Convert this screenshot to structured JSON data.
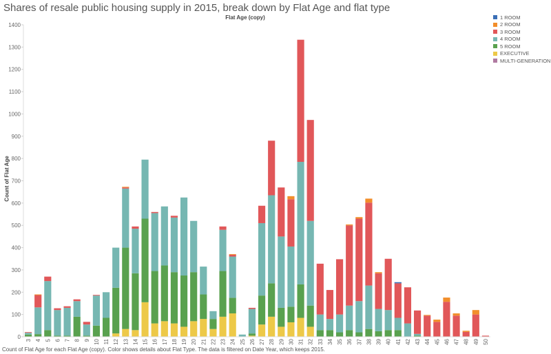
{
  "chart_data": {
    "type": "bar",
    "stacked": true,
    "title": "Shares of resale public housing supply in 2015, break down by Flat Age and flat type",
    "column_header": "Flat Age (copy)",
    "ylabel": "Count of Flat Age",
    "xlabel": "",
    "ylim": [
      0,
      1400
    ],
    "yticks": [
      0,
      100,
      200,
      300,
      400,
      500,
      600,
      700,
      800,
      900,
      1000,
      1100,
      1200,
      1300,
      1400
    ],
    "grid": false,
    "legend_position": "right",
    "categories": [
      "3",
      "4",
      "5",
      "6",
      "7",
      "8",
      "9",
      "10",
      "11",
      "12",
      "13",
      "14",
      "15",
      "16",
      "17",
      "18",
      "19",
      "20",
      "21",
      "22",
      "23",
      "24",
      "25",
      "26",
      "27",
      "28",
      "29",
      "30",
      "31",
      "32",
      "33",
      "34",
      "35",
      "36",
      "37",
      "38",
      "39",
      "40",
      "41",
      "42",
      "43",
      "44",
      "45",
      "46",
      "47",
      "48",
      "49",
      "50"
    ],
    "series": [
      {
        "name": "1 ROOM",
        "color": "#3b6fb6",
        "values": [
          0,
          0,
          0,
          0,
          0,
          0,
          0,
          0,
          0,
          0,
          0,
          0,
          0,
          0,
          0,
          0,
          0,
          0,
          0,
          0,
          0,
          0,
          0,
          0,
          0,
          0,
          0,
          0,
          0,
          0,
          0,
          0,
          0,
          0,
          0,
          0,
          0,
          0,
          5,
          0,
          0,
          0,
          0,
          0,
          0,
          0,
          0,
          0
        ]
      },
      {
        "name": "2 ROOM",
        "color": "#f28e2b",
        "values": [
          0,
          3,
          0,
          0,
          0,
          0,
          0,
          0,
          0,
          0,
          3,
          0,
          0,
          0,
          0,
          0,
          0,
          0,
          0,
          0,
          0,
          3,
          0,
          0,
          0,
          0,
          0,
          14,
          0,
          0,
          0,
          0,
          0,
          4,
          7,
          18,
          5,
          0,
          0,
          0,
          0,
          3,
          10,
          19,
          10,
          5,
          20,
          0
        ]
      },
      {
        "name": "3 ROOM",
        "color": "#e15759",
        "values": [
          3,
          55,
          20,
          8,
          7,
          8,
          12,
          3,
          0,
          0,
          5,
          10,
          0,
          5,
          0,
          8,
          0,
          0,
          0,
          0,
          15,
          8,
          0,
          5,
          78,
          245,
          220,
          212,
          548,
          453,
          228,
          130,
          248,
          360,
          370,
          372,
          160,
          230,
          155,
          162,
          105,
          95,
          67,
          157,
          95,
          22,
          100,
          5
        ]
      },
      {
        "name": "4 ROOM",
        "color": "#76b7b2",
        "values": [
          8,
          120,
          220,
          115,
          125,
          70,
          50,
          135,
          115,
          180,
          265,
          200,
          265,
          260,
          265,
          245,
          350,
          230,
          125,
          35,
          185,
          185,
          10,
          110,
          325,
          395,
          320,
          270,
          550,
          380,
          70,
          50,
          80,
          110,
          140,
          195,
          100,
          90,
          55,
          60,
          8,
          0,
          0,
          0,
          0,
          0,
          0,
          0
        ]
      },
      {
        "name": "5 ROOM",
        "color": "#59a14f",
        "values": [
          10,
          12,
          30,
          5,
          5,
          90,
          5,
          50,
          85,
          205,
          365,
          255,
          375,
          235,
          250,
          230,
          230,
          220,
          110,
          45,
          205,
          70,
          0,
          10,
          130,
          150,
          85,
          70,
          150,
          95,
          30,
          30,
          20,
          30,
          20,
          35,
          25,
          30,
          30,
          0,
          5,
          0,
          0,
          0,
          0,
          0,
          0,
          0
        ]
      },
      {
        "name": "EXECUTIVE",
        "color": "#edc948",
        "values": [
          0,
          0,
          0,
          0,
          0,
          0,
          0,
          0,
          0,
          15,
          35,
          30,
          155,
          60,
          70,
          60,
          45,
          70,
          80,
          35,
          90,
          105,
          0,
          5,
          55,
          90,
          45,
          65,
          85,
          45,
          0,
          0,
          0,
          0,
          0,
          0,
          0,
          0,
          0,
          0,
          0,
          0,
          0,
          0,
          0,
          0,
          0,
          0
        ]
      },
      {
        "name": "MULTI-GENERATION",
        "color": "#b07aa1",
        "values": [
          0,
          0,
          0,
          0,
          0,
          0,
          0,
          0,
          0,
          0,
          0,
          0,
          0,
          0,
          0,
          0,
          0,
          0,
          0,
          0,
          0,
          0,
          0,
          0,
          0,
          0,
          0,
          0,
          0,
          0,
          0,
          0,
          0,
          0,
          0,
          0,
          0,
          0,
          0,
          0,
          0,
          0,
          0,
          0,
          0,
          0,
          0,
          0
        ]
      }
    ]
  },
  "footnote": "Count of Flat Age for each Flat Age (copy).  Color shows details about Flat Type. The data is filtered on Date Year, which keeps 2015."
}
